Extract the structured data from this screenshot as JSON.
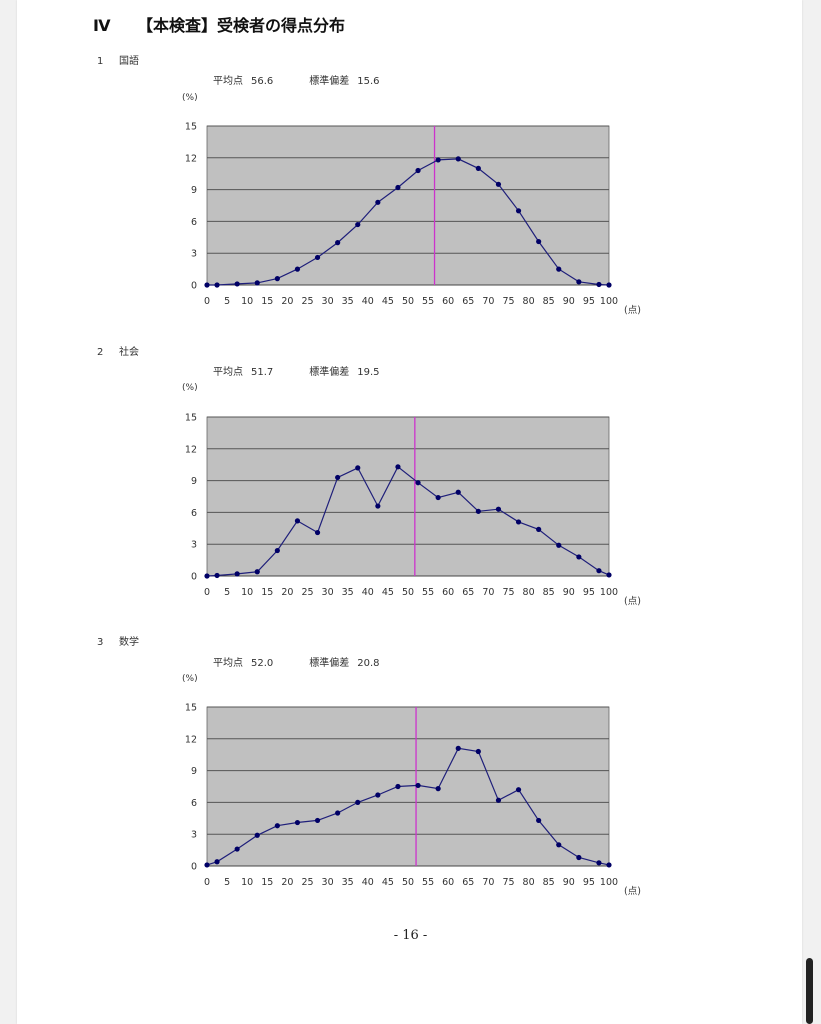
{
  "document": {
    "heading_num": "Ⅳ",
    "heading_text": "【本検査】受検者の得点分布",
    "page_number": "- 16 -"
  },
  "labels": {
    "mean_label": "平均点",
    "sd_label": "標準偏差",
    "y_unit": "(%)",
    "x_unit": "(点)"
  },
  "colors": {
    "plot_bg": "#c0c0c0",
    "series_line": "#1f1f7a",
    "marker": "#000066",
    "mean_line": "#cc33cc",
    "grid": "#555555"
  },
  "chart_data": [
    {
      "type": "line",
      "section_num": "1",
      "subject": "国語",
      "mean": "56.6",
      "sd": "15.6",
      "mean_value": 56.6,
      "x": [
        0,
        2.5,
        7.5,
        12.5,
        17.5,
        22.5,
        27.5,
        32.5,
        37.5,
        42.5,
        47.5,
        52.5,
        57.5,
        62.5,
        67.5,
        72.5,
        77.5,
        82.5,
        87.5,
        92.5,
        97.5,
        100
      ],
      "values": [
        0,
        0,
        0.1,
        0.2,
        0.6,
        1.5,
        2.6,
        4.0,
        5.7,
        7.8,
        9.2,
        10.8,
        11.8,
        11.9,
        11.0,
        9.5,
        7.0,
        4.1,
        1.5,
        0.3,
        0.05,
        0
      ],
      "xlim": [
        0,
        100
      ],
      "ylim": [
        0,
        15
      ],
      "x_ticks": [
        0,
        5,
        10,
        15,
        20,
        25,
        30,
        35,
        40,
        45,
        50,
        55,
        60,
        65,
        70,
        75,
        80,
        85,
        90,
        95,
        100
      ],
      "y_ticks": [
        0,
        3,
        6,
        9,
        12,
        15
      ],
      "grid": true
    },
    {
      "type": "line",
      "section_num": "2",
      "subject": "社会",
      "mean": "51.7",
      "sd": "19.5",
      "mean_value": 51.7,
      "x": [
        0,
        2.5,
        7.5,
        12.5,
        17.5,
        22.5,
        27.5,
        32.5,
        37.5,
        42.5,
        47.5,
        52.5,
        57.5,
        62.5,
        67.5,
        72.5,
        77.5,
        82.5,
        87.5,
        92.5,
        97.5,
        100
      ],
      "values": [
        0,
        0.05,
        0.2,
        0.4,
        2.4,
        5.2,
        4.1,
        9.3,
        10.2,
        6.6,
        10.3,
        8.8,
        7.4,
        7.9,
        6.1,
        6.3,
        5.1,
        4.4,
        2.9,
        1.8,
        0.5,
        0.1
      ],
      "xlim": [
        0,
        100
      ],
      "ylim": [
        0,
        15
      ],
      "x_ticks": [
        0,
        5,
        10,
        15,
        20,
        25,
        30,
        35,
        40,
        45,
        50,
        55,
        60,
        65,
        70,
        75,
        80,
        85,
        90,
        95,
        100
      ],
      "y_ticks": [
        0,
        3,
        6,
        9,
        12,
        15
      ],
      "grid": true
    },
    {
      "type": "line",
      "section_num": "3",
      "subject": "数学",
      "mean": "52.0",
      "sd": "20.8",
      "mean_value": 52.0,
      "x": [
        0,
        2.5,
        7.5,
        12.5,
        17.5,
        22.5,
        27.5,
        32.5,
        37.5,
        42.5,
        47.5,
        52.5,
        57.5,
        62.5,
        67.5,
        72.5,
        77.5,
        82.5,
        87.5,
        92.5,
        97.5,
        100
      ],
      "values": [
        0.1,
        0.4,
        1.6,
        2.9,
        3.8,
        4.1,
        4.3,
        5.0,
        6.0,
        6.7,
        7.5,
        7.6,
        7.3,
        11.1,
        10.8,
        6.2,
        7.2,
        4.3,
        2.0,
        0.8,
        0.3,
        0.1
      ],
      "xlim": [
        0,
        100
      ],
      "ylim": [
        0,
        15
      ],
      "x_ticks": [
        0,
        5,
        10,
        15,
        20,
        25,
        30,
        35,
        40,
        45,
        50,
        55,
        60,
        65,
        70,
        75,
        80,
        85,
        90,
        95,
        100
      ],
      "y_ticks": [
        0,
        3,
        6,
        9,
        12,
        15
      ],
      "grid": true
    }
  ]
}
